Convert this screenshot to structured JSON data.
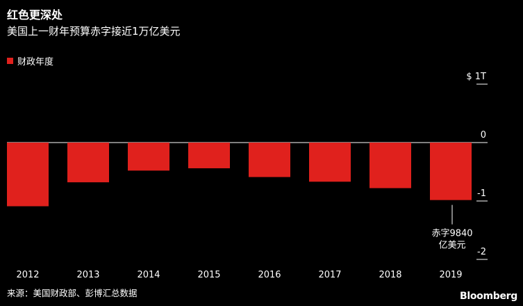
{
  "header": {
    "title": "红色更深处",
    "subtitle": "美国上一财年预算赤字接近1万亿美元"
  },
  "footer": {
    "source": "来源：美国财政部、彭博汇总数据",
    "brand": "Bloomberg"
  },
  "colors": {
    "bar": "#e0211d",
    "background": "#000000",
    "text": "#ffffff"
  },
  "chart_data": {
    "type": "bar",
    "title": "红色更深处",
    "subtitle": "美国上一财年预算赤字接近1万亿美元",
    "categories": [
      "2012",
      "2013",
      "2014",
      "2015",
      "2016",
      "2017",
      "2018",
      "2019"
    ],
    "series": [
      {
        "name": "财政年度",
        "values": [
          -1.09,
          -0.68,
          -0.48,
          -0.44,
          -0.59,
          -0.67,
          -0.78,
          -0.984
        ]
      }
    ],
    "ylim": [
      -2,
      1
    ],
    "y_ticks": [
      1,
      0,
      -1,
      -2
    ],
    "y_tick_labels": [
      "$ 1T",
      "0",
      "-1",
      "-2"
    ],
    "y_axis_position": "right",
    "legend_position": "top-left",
    "grid": false,
    "annotation": {
      "category": "2019",
      "lines": [
        "赤字9840",
        "亿美元"
      ]
    }
  }
}
